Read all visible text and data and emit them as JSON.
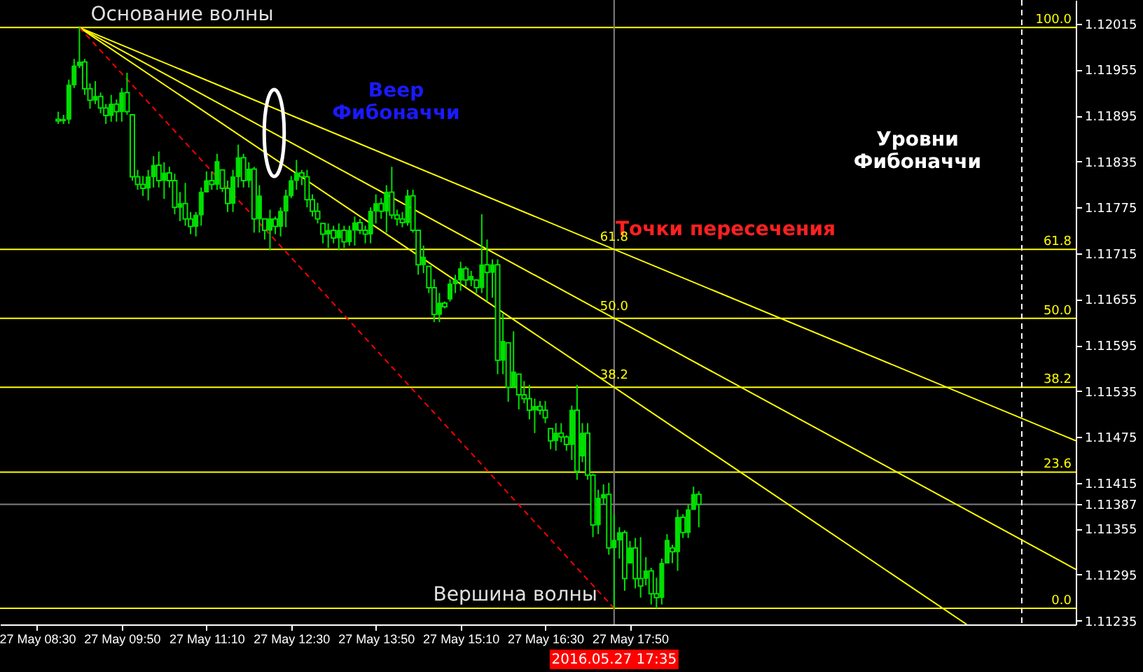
{
  "chart_data": {
    "type": "candlestick",
    "color": "#00e000",
    "x": [
      "2016-05-27T08:50",
      "2016-05-27T08:55",
      "2016-05-27T09:00",
      "2016-05-27T09:05",
      "2016-05-27T09:10",
      "2016-05-27T09:15",
      "2016-05-27T09:20",
      "2016-05-27T09:25",
      "2016-05-27T09:30",
      "2016-05-27T09:35",
      "2016-05-27T09:40",
      "2016-05-27T09:45",
      "2016-05-27T09:50",
      "2016-05-27T09:55",
      "2016-05-27T10:00",
      "2016-05-27T10:05",
      "2016-05-27T10:10",
      "2016-05-27T10:15",
      "2016-05-27T10:20",
      "2016-05-27T10:25",
      "2016-05-27T10:30",
      "2016-05-27T10:35",
      "2016-05-27T10:40",
      "2016-05-27T10:45",
      "2016-05-27T10:50",
      "2016-05-27T10:55",
      "2016-05-27T11:00",
      "2016-05-27T11:05",
      "2016-05-27T11:10",
      "2016-05-27T11:15",
      "2016-05-27T11:20",
      "2016-05-27T11:25",
      "2016-05-27T11:30",
      "2016-05-27T11:35",
      "2016-05-27T11:40",
      "2016-05-27T11:45",
      "2016-05-27T11:50",
      "2016-05-27T11:55",
      "2016-05-27T12:00",
      "2016-05-27T12:05",
      "2016-05-27T12:10",
      "2016-05-27T12:15",
      "2016-05-27T12:20",
      "2016-05-27T12:25",
      "2016-05-27T12:30",
      "2016-05-27T12:35",
      "2016-05-27T12:40",
      "2016-05-27T12:45",
      "2016-05-27T12:50",
      "2016-05-27T12:55",
      "2016-05-27T13:00",
      "2016-05-27T13:05",
      "2016-05-27T13:10",
      "2016-05-27T13:15",
      "2016-05-27T13:20",
      "2016-05-27T13:25",
      "2016-05-27T13:30",
      "2016-05-27T13:35",
      "2016-05-27T13:40",
      "2016-05-27T13:45",
      "2016-05-27T13:50",
      "2016-05-27T13:55",
      "2016-05-27T14:00",
      "2016-05-27T14:05",
      "2016-05-27T14:10",
      "2016-05-27T14:15",
      "2016-05-27T14:20",
      "2016-05-27T14:25",
      "2016-05-27T14:30",
      "2016-05-27T14:35",
      "2016-05-27T14:40",
      "2016-05-27T14:45",
      "2016-05-27T14:50",
      "2016-05-27T14:55",
      "2016-05-27T15:00",
      "2016-05-27T15:05",
      "2016-05-27T15:10",
      "2016-05-27T15:15",
      "2016-05-27T15:20",
      "2016-05-27T15:25",
      "2016-05-27T15:30",
      "2016-05-27T15:35",
      "2016-05-27T15:40",
      "2016-05-27T15:45",
      "2016-05-27T15:50",
      "2016-05-27T15:55",
      "2016-05-27T16:00",
      "2016-05-27T16:05",
      "2016-05-27T16:10",
      "2016-05-27T16:15",
      "2016-05-27T16:20",
      "2016-05-27T16:25",
      "2016-05-27T16:30",
      "2016-05-27T16:35",
      "2016-05-27T16:40",
      "2016-05-27T16:45",
      "2016-05-27T16:50",
      "2016-05-27T16:55",
      "2016-05-27T17:00",
      "2016-05-27T17:05",
      "2016-05-27T17:10",
      "2016-05-27T17:15",
      "2016-05-27T17:20",
      "2016-05-27T17:25",
      "2016-05-27T17:30",
      "2016-05-27T17:35",
      "2016-05-27T17:40",
      "2016-05-27T17:45",
      "2016-05-27T17:50",
      "2016-05-27T17:55",
      "2016-05-27T18:00",
      "2016-05-27T18:05",
      "2016-05-27T18:10",
      "2016-05-27T18:15",
      "2016-05-27T18:20",
      "2016-05-27T18:25",
      "2016-05-27T18:30",
      "2016-05-27T18:35",
      "2016-05-27T18:40",
      "2016-05-27T18:45",
      "2016-05-27T18:50",
      "2016-05-27T18:55"
    ],
    "ohlc": [
      [
        1.1189,
        1.119,
        1.11884,
        1.11888
      ],
      [
        1.11888,
        1.11896,
        1.11884,
        1.1189
      ],
      [
        1.1189,
        1.11942,
        1.11884,
        1.11935
      ],
      [
        1.11935,
        1.11969,
        1.11931,
        1.1196
      ],
      [
        1.1196,
        1.1201,
        1.11957,
        1.11965
      ],
      [
        1.11965,
        1.11969,
        1.11922,
        1.1193
      ],
      [
        1.1193,
        1.11937,
        1.11904,
        1.11915
      ],
      [
        1.11915,
        1.1194,
        1.1191,
        1.1192
      ],
      [
        1.1192,
        1.11925,
        1.11898,
        1.11905
      ],
      [
        1.11905,
        1.1191,
        1.11884,
        1.11895
      ],
      [
        1.11895,
        1.11922,
        1.11887,
        1.1191
      ],
      [
        1.1191,
        1.11916,
        1.11887,
        1.119
      ],
      [
        1.119,
        1.11931,
        1.11887,
        1.11925
      ],
      [
        1.11925,
        1.11951,
        1.11896,
        1.119
      ],
      [
        1.11896,
        1.11896,
        1.1181,
        1.11815
      ],
      [
        1.11815,
        1.11824,
        1.11798,
        1.11805
      ],
      [
        1.11805,
        1.11816,
        1.1179,
        1.118
      ],
      [
        1.118,
        1.11824,
        1.11784,
        1.11815
      ],
      [
        1.11815,
        1.11842,
        1.11801,
        1.1183
      ],
      [
        1.1183,
        1.11848,
        1.11801,
        1.1181
      ],
      [
        1.1181,
        1.11834,
        1.11786,
        1.1182
      ],
      [
        1.1182,
        1.11828,
        1.11801,
        1.1181
      ],
      [
        1.1181,
        1.11819,
        1.11766,
        1.11775
      ],
      [
        1.11775,
        1.11795,
        1.11757,
        1.1178
      ],
      [
        1.1178,
        1.11807,
        1.11751,
        1.1176
      ],
      [
        1.1176,
        1.11769,
        1.1174,
        1.1175
      ],
      [
        1.1175,
        1.11769,
        1.11737,
        1.11765
      ],
      [
        1.11765,
        1.11801,
        1.11751,
        1.11795
      ],
      [
        1.11795,
        1.11822,
        1.11795,
        1.1181
      ],
      [
        1.1181,
        1.11822,
        1.11798,
        1.11805
      ],
      [
        1.11805,
        1.11845,
        1.11798,
        1.11835
      ],
      [
        1.11824,
        1.11824,
        1.11795,
        1.118
      ],
      [
        1.118,
        1.1181,
        1.11769,
        1.1178
      ],
      [
        1.1178,
        1.11824,
        1.11769,
        1.11815
      ],
      [
        1.11815,
        1.11857,
        1.11801,
        1.1184
      ],
      [
        1.1184,
        1.11845,
        1.11801,
        1.1181
      ],
      [
        1.1181,
        1.11834,
        1.11801,
        1.11825
      ],
      [
        1.11825,
        1.11828,
        1.11742,
        1.1176
      ],
      [
        1.1176,
        1.11804,
        1.11742,
        1.1179
      ],
      [
        1.1176,
        1.1176,
        1.11733,
        1.11745
      ],
      [
        1.11745,
        1.11772,
        1.11719,
        1.1176
      ],
      [
        1.1176,
        1.11763,
        1.1174,
        1.1175
      ],
      [
        1.1175,
        1.11775,
        1.11737,
        1.1177
      ],
      [
        1.1177,
        1.11798,
        1.11749,
        1.1179
      ],
      [
        1.1179,
        1.11816,
        1.11787,
        1.1181
      ],
      [
        1.1181,
        1.11837,
        1.11798,
        1.1182
      ],
      [
        1.1182,
        1.11824,
        1.11804,
        1.11815
      ],
      [
        1.11815,
        1.11824,
        1.11775,
        1.11785
      ],
      [
        1.11785,
        1.11792,
        1.11763,
        1.1177
      ],
      [
        1.1177,
        1.11781,
        1.11754,
        1.1176
      ],
      [
        1.11754,
        1.11754,
        1.11728,
        1.1174
      ],
      [
        1.1174,
        1.11754,
        1.11722,
        1.11745
      ],
      [
        1.11745,
        1.11751,
        1.11728,
        1.11735
      ],
      [
        1.11735,
        1.11754,
        1.11719,
        1.11745
      ],
      [
        1.11745,
        1.11751,
        1.11722,
        1.1173
      ],
      [
        1.1173,
        1.11751,
        1.11725,
        1.11745
      ],
      [
        1.11745,
        1.11763,
        1.11725,
        1.11755
      ],
      [
        1.11755,
        1.1176,
        1.1174,
        1.11745
      ],
      [
        1.11745,
        1.11751,
        1.11728,
        1.1174
      ],
      [
        1.1174,
        1.11775,
        1.11728,
        1.1177
      ],
      [
        1.1177,
        1.11792,
        1.11754,
        1.1178
      ],
      [
        1.1178,
        1.11787,
        1.1176,
        1.1177
      ],
      [
        1.1177,
        1.11804,
        1.11742,
        1.11795
      ],
      [
        1.11795,
        1.11828,
        1.1176,
        1.11765
      ],
      [
        1.11765,
        1.11772,
        1.11751,
        1.1176
      ],
      [
        1.1176,
        1.11769,
        1.11749,
        1.11755
      ],
      [
        1.11755,
        1.11798,
        1.11751,
        1.1179
      ],
      [
        1.1179,
        1.11798,
        1.11742,
        1.11745
      ],
      [
        1.11745,
        1.11745,
        1.11687,
        1.117
      ],
      [
        1.117,
        1.11725,
        1.11689,
        1.1171
      ],
      [
        1.11698,
        1.11698,
        1.11663,
        1.1167
      ],
      [
        1.1167,
        1.11681,
        1.11625,
        1.11635
      ],
      [
        1.11635,
        1.11663,
        1.11625,
        1.1165
      ],
      [
        1.1165,
        1.11652,
        1.11643,
        1.11645
      ],
      [
        1.11655,
        1.11681,
        1.11652,
        1.11675
      ],
      [
        1.11675,
        1.11687,
        1.11663,
        1.1168
      ],
      [
        1.1168,
        1.11704,
        1.11666,
        1.11695
      ],
      [
        1.11695,
        1.11698,
        1.11672,
        1.1168
      ],
      [
        1.1168,
        1.11692,
        1.11672,
        1.11685
      ],
      [
        1.1168,
        1.11681,
        1.11663,
        1.1167
      ],
      [
        1.1167,
        1.11766,
        1.11663,
        1.117
      ],
      [
        1.117,
        1.11733,
        1.11652,
        1.1169
      ],
      [
        1.1169,
        1.11707,
        1.11657,
        1.117
      ],
      [
        1.117,
        1.11707,
        1.11557,
        1.11575
      ],
      [
        1.11575,
        1.11636,
        1.11557,
        1.116
      ],
      [
        1.11598,
        1.11598,
        1.11521,
        1.1154
      ],
      [
        1.1154,
        1.11613,
        1.11539,
        1.1156
      ],
      [
        1.11557,
        1.11557,
        1.11511,
        1.1153
      ],
      [
        1.1153,
        1.11548,
        1.11519,
        1.11525
      ],
      [
        1.11525,
        1.11543,
        1.11498,
        1.1151
      ],
      [
        1.1151,
        1.11525,
        1.1148,
        1.11515
      ],
      [
        1.11515,
        1.11522,
        1.11504,
        1.1151
      ],
      [
        1.1151,
        1.11522,
        1.11493,
        1.115
      ],
      [
        1.11486,
        1.11486,
        1.11459,
        1.1147
      ],
      [
        1.1147,
        1.11493,
        1.11457,
        1.1148
      ],
      [
        1.1148,
        1.11493,
        1.11468,
        1.11475
      ],
      [
        1.11475,
        1.11477,
        1.11457,
        1.11465
      ],
      [
        1.11465,
        1.11516,
        1.11445,
        1.1151
      ],
      [
        1.1151,
        1.11543,
        1.11419,
        1.1143
      ],
      [
        1.1145,
        1.11493,
        1.11442,
        1.1148
      ],
      [
        1.1148,
        1.11493,
        1.11419,
        1.11425
      ],
      [
        1.11425,
        1.11427,
        1.11344,
        1.1136
      ],
      [
        1.1136,
        1.11406,
        1.11348,
        1.11395
      ],
      [
        1.11395,
        1.11413,
        1.11387,
        1.114
      ],
      [
        1.114,
        1.11415,
        1.11321,
        1.1133
      ],
      [
        1.1133,
        1.11374,
        1.11251,
        1.1134
      ],
      [
        1.1134,
        1.11357,
        1.11316,
        1.1135
      ],
      [
        1.1135,
        1.11353,
        1.11274,
        1.1129
      ],
      [
        1.1131,
        1.11339,
        1.1131,
        1.1133
      ],
      [
        1.1133,
        1.11343,
        1.11277,
        1.1129
      ],
      [
        1.1129,
        1.11344,
        1.11265,
        1.1128
      ],
      [
        1.1129,
        1.11318,
        1.11281,
        1.113
      ],
      [
        1.113,
        1.11304,
        1.11256,
        1.1127
      ],
      [
        1.1127,
        1.11291,
        1.11251,
        1.11265
      ],
      [
        1.11265,
        1.11316,
        1.11256,
        1.1131
      ],
      [
        1.1131,
        1.11348,
        1.1131,
        1.1134
      ],
      [
        1.1133,
        1.11334,
        1.1131,
        1.11325
      ],
      [
        1.11325,
        1.1138,
        1.113,
        1.1137
      ],
      [
        1.1137,
        1.11374,
        1.11343,
        1.1135
      ],
      [
        1.1135,
        1.11387,
        1.11343,
        1.1138
      ],
      [
        1.1138,
        1.1141,
        1.1138,
        1.114
      ],
      [
        1.114,
        1.11404,
        1.11357,
        1.11387
      ]
    ],
    "series": [
      {
        "type": "line",
        "color": "#ffff00",
        "x": [
          "2016-05-27T09:10",
          "2016-05-28T00:51"
        ],
        "values": [
          1.1201,
          1.1147
        ]
      },
      {
        "type": "line",
        "color": "#ffff00",
        "x": [
          "2016-05-27T09:10",
          "2016-05-28T00:51"
        ],
        "values": [
          1.1201,
          1.11302
        ]
      },
      {
        "type": "line",
        "color": "#ffff00",
        "x": [
          "2016-05-27T09:10",
          "2016-05-27T23:08"
        ],
        "values": [
          1.1201,
          1.1123
        ]
      },
      {
        "type": "line",
        "color": "#ff0000",
        "line_style": "dashed",
        "x": [
          "2016-05-27T09:10",
          "2016-05-27T17:35"
        ],
        "values": [
          1.1201,
          1.11251
        ]
      }
    ],
    "ref_lines": [
      {
        "axis": "y",
        "value": 1.1201,
        "color": "#ffff00"
      },
      {
        "axis": "y",
        "value": 1.1172,
        "color": "#ffff00"
      },
      {
        "axis": "y",
        "value": 1.1163,
        "color": "#ffff00"
      },
      {
        "axis": "y",
        "value": 1.1154,
        "color": "#ffff00"
      },
      {
        "axis": "y",
        "value": 1.11429,
        "color": "#ffff00"
      },
      {
        "axis": "y",
        "value": 1.11251,
        "color": "#ffff00"
      },
      {
        "axis": "y",
        "value": 1.11387,
        "color": "#808080"
      },
      {
        "axis": "x",
        "value": "2016-05-27T17:35",
        "color": "#808080"
      },
      {
        "axis": "x",
        "value": "2016-05-28T00:00",
        "color": "#ffffff",
        "line_style": "dashed"
      }
    ],
    "annotations": [
      {
        "text": "Основание волны",
        "x": "2016-05-27T09:10",
        "y": 1.1201
      },
      "Вершина волны",
      "Веер Фибоначчи",
      "Уровни Фибоначчи",
      "Точки пересечения",
      {
        "text": "61.8",
        "x": "2016-05-27T17:35",
        "y": 1.1172
      },
      {
        "text": "50.0",
        "x": "2016-05-27T17:35",
        "y": 1.1163
      },
      {
        "text": "38.2",
        "x": "2016-05-27T17:35",
        "y": 1.1154
      },
      "2016.05.27 17:35",
      "100.0",
      "61.8",
      "50.0",
      "38.2",
      "23.6",
      "0.0"
    ],
    "xlim": [
      "2016-05-27T07:55",
      "2016-05-28T00:51"
    ],
    "ylim": [
      1.1123,
      1.12046
    ],
    "xticks": [
      {
        "value": "2016-05-27T08:30",
        "label": "27 May 08:30"
      },
      {
        "value": "2016-05-27T09:50",
        "label": "27 May 09:50"
      },
      {
        "value": "2016-05-27T11:10",
        "label": "27 May 11:10"
      },
      {
        "value": "2016-05-27T12:30",
        "label": "27 May 12:30"
      },
      {
        "value": "2016-05-27T13:50",
        "label": "27 May 13:50"
      },
      {
        "value": "2016-05-27T15:10",
        "label": "27 May 15:10"
      },
      {
        "value": "2016-05-27T16:30",
        "label": "27 May 16:30"
      },
      {
        "value": "2016-05-27T17:50",
        "label": "27 May 17:50"
      }
    ],
    "yticks": [
      1.12015,
      1.11955,
      1.11895,
      1.11835,
      1.11775,
      1.11715,
      1.11655,
      1.11595,
      1.11535,
      1.11475,
      1.11415,
      1.11387,
      1.11355,
      1.11295,
      1.11235
    ]
  }
}
